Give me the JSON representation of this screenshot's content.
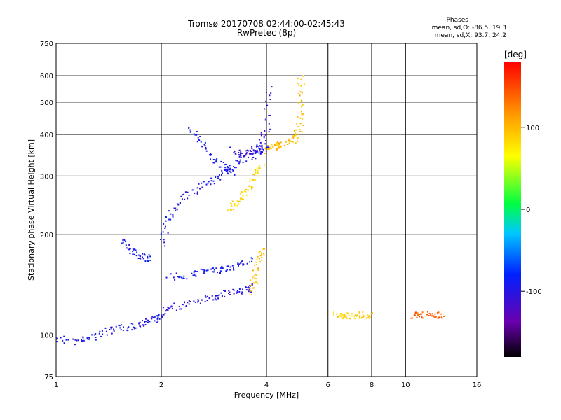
{
  "chart_data": {
    "type": "scatter",
    "title": "Tromsø 20170708 02:44:00-02:45:43",
    "subtitle": "RwPretec (8p)",
    "xlabel": "Frequency [MHz]",
    "ylabel": "Stationary phase Virtual Height [km]",
    "x_scale": "log",
    "y_scale": "log",
    "xlim": [
      1,
      16
    ],
    "ylim": [
      75,
      750
    ],
    "x_ticks": [
      1,
      2,
      4,
      6,
      8,
      10,
      16
    ],
    "x_tick_labels": [
      "1",
      "2",
      "4",
      "6",
      "8",
      "10",
      "16"
    ],
    "y_ticks": [
      75,
      100,
      200,
      300,
      400,
      500,
      600,
      750
    ],
    "y_tick_labels": [
      "75",
      "100",
      "200",
      "300",
      "400",
      "500",
      "600",
      "750"
    ],
    "grid": true,
    "stats_block": {
      "heading": "Phases",
      "line1": "mean, sd,O: -86.5, 19.3",
      "line2": "mean, sd,X:  93.7, 24.2"
    },
    "colorbar": {
      "label": "[deg]",
      "range": [
        -180,
        180
      ],
      "tick_values": [
        100,
        0,
        -100
      ],
      "tick_labels": [
        "100",
        "0",
        "-100"
      ],
      "colormap": "rainbow"
    },
    "traces": [
      {
        "x": [
          1.0,
          1.15,
          1.3,
          1.45,
          1.6,
          1.75,
          1.9,
          2.0
        ],
        "y": [
          98,
          96,
          100,
          104,
          106,
          108,
          112,
          115
        ],
        "phase": -95
      },
      {
        "x": [
          2.0,
          2.2,
          2.5,
          2.8,
          3.1,
          3.4,
          3.7
        ],
        "y": [
          118,
          122,
          126,
          130,
          134,
          137,
          140
        ],
        "phase": -100
      },
      {
        "x": [
          2.1,
          2.4,
          2.7,
          3.0,
          3.3,
          3.6
        ],
        "y": [
          150,
          152,
          156,
          158,
          162,
          168
        ],
        "phase": -90
      },
      {
        "x": [
          1.55,
          1.65,
          1.75,
          1.85
        ],
        "y": [
          195,
          180,
          172,
          170
        ],
        "phase": -90
      },
      {
        "x": [
          2.0,
          2.1,
          2.3,
          2.6,
          2.9,
          3.2,
          3.5,
          3.8,
          4.0
        ],
        "y": [
          190,
          230,
          260,
          280,
          300,
          320,
          340,
          355,
          370
        ],
        "phase": -95
      },
      {
        "x": [
          2.4,
          2.6,
          2.8,
          3.0,
          3.2
        ],
        "y": [
          420,
          380,
          340,
          320,
          310
        ],
        "phase": -90
      },
      {
        "x": [
          3.2,
          3.4,
          3.6,
          3.8,
          4.0,
          4.05
        ],
        "y": [
          360,
          350,
          355,
          370,
          420,
          560
        ],
        "phase": -110
      },
      {
        "x": [
          3.1,
          3.3,
          3.5,
          3.7,
          3.9
        ],
        "y": [
          240,
          250,
          270,
          300,
          330
        ],
        "phase": 85
      },
      {
        "x": [
          4.0,
          4.2,
          4.5,
          4.8,
          4.95,
          5.0,
          5.0
        ],
        "y": [
          360,
          368,
          378,
          390,
          420,
          500,
          620
        ],
        "phase": 100
      },
      {
        "x": [
          3.6,
          3.7,
          3.8,
          3.9
        ],
        "y": [
          135,
          150,
          170,
          185
        ],
        "phase": 95
      },
      {
        "x": [
          6.3,
          6.6,
          7.0,
          7.5,
          8.0
        ],
        "y": [
          115,
          115,
          115,
          115,
          115
        ],
        "phase": 90
      },
      {
        "x": [
          10.5,
          11.0,
          12.0,
          13.0
        ],
        "y": [
          115,
          115,
          115,
          115
        ],
        "phase": 140
      }
    ]
  }
}
